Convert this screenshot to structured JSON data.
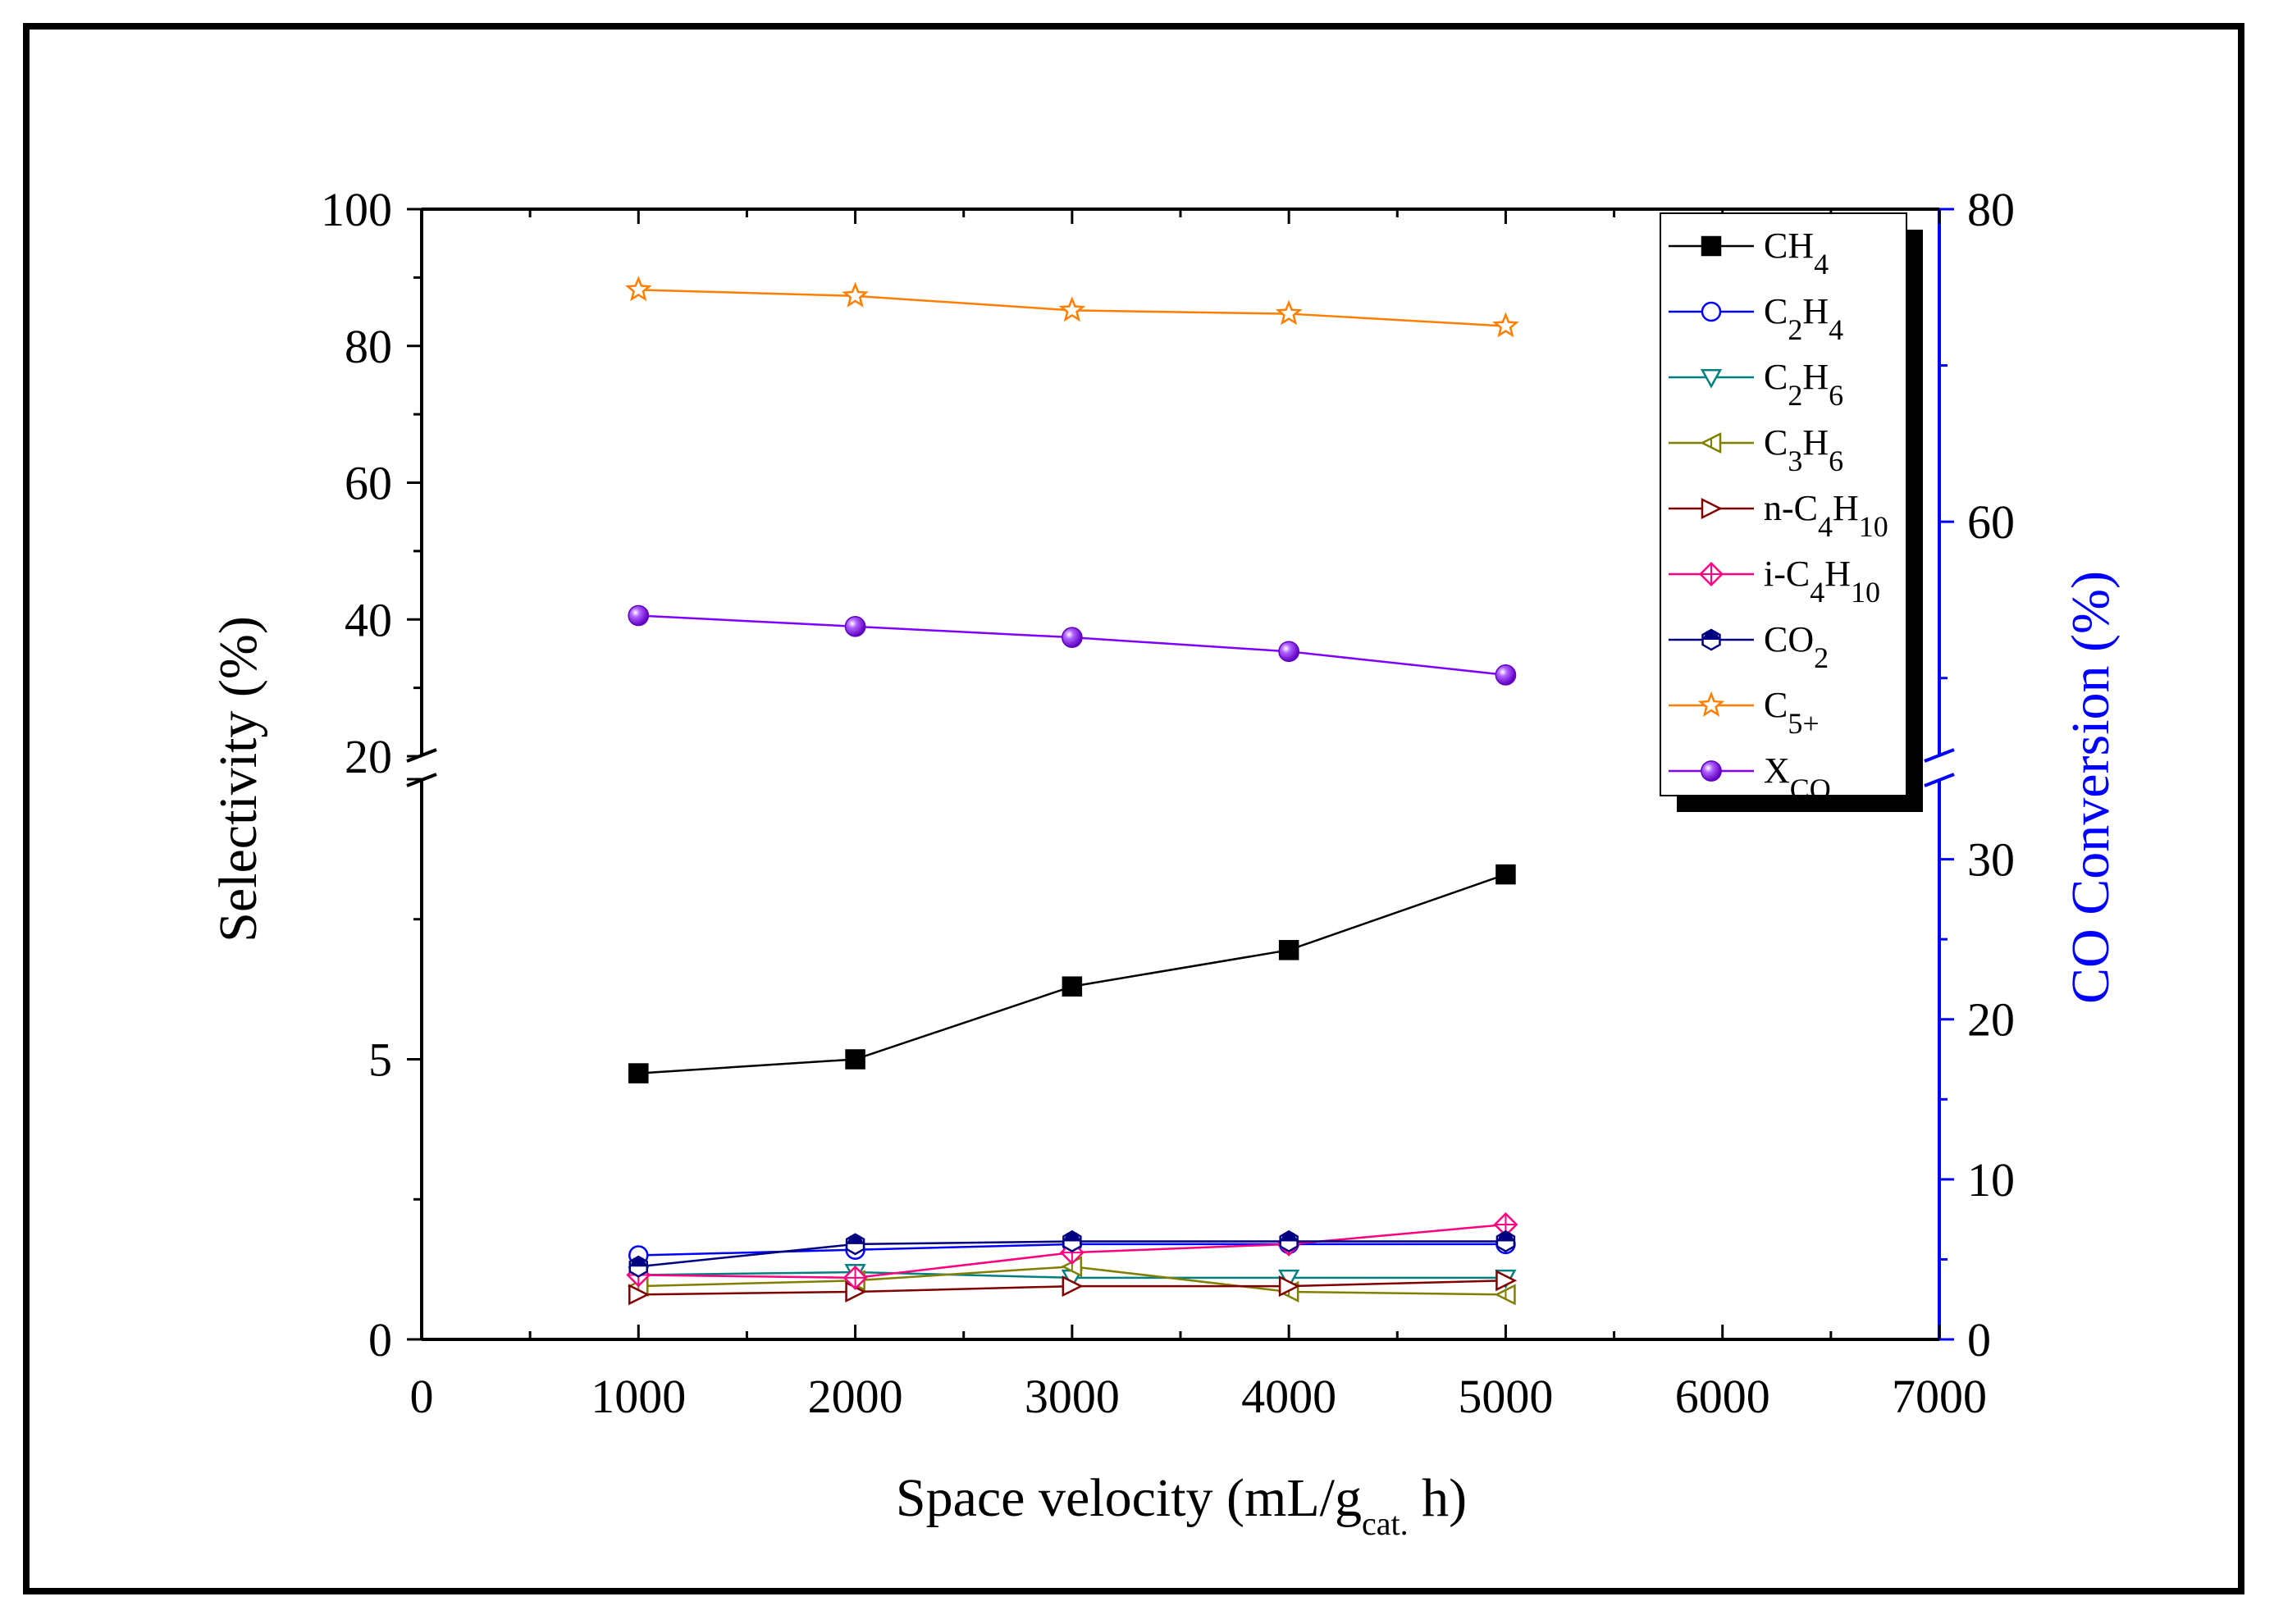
{
  "chart_data": {
    "type": "line",
    "title": "",
    "xlabel": "Space velocity (mL/g",
    "xlabel_sub": "cat.",
    "xlabel_tail": " h)",
    "ylabel": "Selectivity (%)",
    "y2label": "CO Conversion (%)",
    "xlim": [
      0,
      7000
    ],
    "x_ticks": [
      0,
      1000,
      2000,
      3000,
      4000,
      5000,
      6000,
      7000
    ],
    "y_lower_range": [
      0,
      10
    ],
    "y_lower_ticks": [
      0,
      5
    ],
    "y_upper_range": [
      20,
      100
    ],
    "y_upper_ticks": [
      20,
      40,
      60,
      80,
      100
    ],
    "y2_lower_range": [
      0,
      35
    ],
    "y2_lower_ticks": [
      0,
      10,
      20,
      30
    ],
    "y2_upper_range": [
      45,
      80
    ],
    "y2_upper_ticks": [
      60,
      80
    ],
    "x": [
      1000,
      2000,
      3000,
      4000,
      5000
    ],
    "colors": {
      "ch4": "#000000",
      "c2h4": "#0000ff",
      "c2h6": "#008080",
      "c3h6": "#808000",
      "nc4h10": "#800000",
      "ic4h10": "#ff0080",
      "co2": "#000080",
      "c5": "#ff8000",
      "xco": "#8000ff",
      "right_axis": "#0000ff"
    },
    "series": [
      {
        "key": "ch4",
        "name": "CH",
        "sub": "4",
        "marker": "square",
        "axis": "left",
        "values": [
          4.75,
          5.0,
          6.3,
          6.95,
          8.3
        ]
      },
      {
        "key": "c2h4",
        "name": "C",
        "sub": "2",
        "name2": "H",
        "sub2": "4",
        "marker": "circle",
        "axis": "left",
        "values": [
          1.5,
          1.6,
          1.7,
          1.7,
          1.7
        ]
      },
      {
        "key": "c2h6",
        "name": "C",
        "sub": "2",
        "name2": "H",
        "sub2": "6",
        "marker": "tri-down",
        "axis": "left",
        "values": [
          1.15,
          1.2,
          1.1,
          1.1,
          1.1
        ]
      },
      {
        "key": "c3h6",
        "name": "C",
        "sub": "3",
        "name2": "H",
        "sub2": "6",
        "marker": "tri-left",
        "axis": "left",
        "values": [
          0.95,
          1.05,
          1.3,
          0.85,
          0.8
        ]
      },
      {
        "key": "nc4h10",
        "name": "n-C",
        "sub": "4",
        "name2": "H",
        "sub2": "10",
        "marker": "tri-right",
        "axis": "left",
        "values": [
          0.8,
          0.85,
          0.95,
          0.95,
          1.05
        ]
      },
      {
        "key": "ic4h10",
        "name": "i-C",
        "sub": "4",
        "name2": "H",
        "sub2": "10",
        "marker": "diamond",
        "axis": "left",
        "values": [
          1.15,
          1.1,
          1.55,
          1.7,
          2.05
        ]
      },
      {
        "key": "co2",
        "name": "CO",
        "sub": "2",
        "marker": "hexagon",
        "axis": "left",
        "values": [
          1.3,
          1.7,
          1.75,
          1.75,
          1.75
        ]
      },
      {
        "key": "c5",
        "name": "C",
        "sub": "5+",
        "marker": "star",
        "axis": "left",
        "values": [
          88.2,
          87.3,
          85.2,
          84.7,
          82.9
        ]
      },
      {
        "key": "xco",
        "name": "X",
        "sub": "CO",
        "marker": "sphere",
        "axis": "right",
        "values": [
          54.0,
          53.3,
          52.6,
          51.7,
          50.2
        ]
      }
    ]
  }
}
